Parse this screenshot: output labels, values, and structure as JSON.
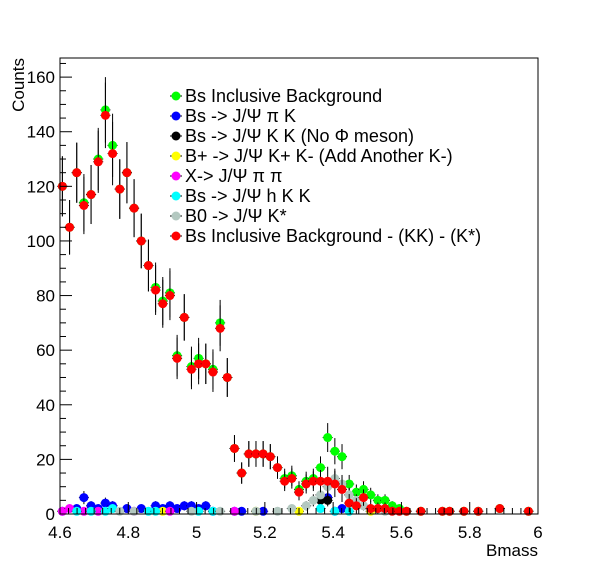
{
  "chart_data": {
    "type": "scatter",
    "xlabel": "Bmass",
    "ylabel": "Counts",
    "xlim": [
      4.6,
      6.0
    ],
    "ylim": [
      0,
      167
    ],
    "xticks": [
      "4.6",
      "4.8",
      "5",
      "5.2",
      "5.4",
      "5.6",
      "5.8",
      "6"
    ],
    "yticks": [
      "0",
      "20",
      "40",
      "60",
      "80",
      "100",
      "120",
      "140",
      "160"
    ],
    "grid": false,
    "legend_position": "top-right",
    "series": [
      {
        "name": "Bs Inclusive Background",
        "color": "#00ff00",
        "points": [
          [
            4.607,
            120,
            11
          ],
          [
            4.628,
            105,
            10
          ],
          [
            4.649,
            125,
            11
          ],
          [
            4.67,
            114,
            10.5
          ],
          [
            4.691,
            117,
            10.8
          ],
          [
            4.712,
            130,
            11.4
          ],
          [
            4.733,
            148,
            12
          ],
          [
            4.754,
            135,
            11.6
          ],
          [
            4.775,
            119,
            10.9
          ],
          [
            4.796,
            125,
            11.2
          ],
          [
            4.817,
            112,
            10.6
          ],
          [
            4.838,
            100,
            10
          ],
          [
            4.859,
            91,
            9.5
          ],
          [
            4.88,
            83,
            9.1
          ],
          [
            4.901,
            78,
            8.8
          ],
          [
            4.922,
            81,
            9
          ],
          [
            4.943,
            58,
            7.6
          ],
          [
            4.964,
            72,
            8.5
          ],
          [
            4.985,
            54,
            7.3
          ],
          [
            5.006,
            57,
            7.5
          ],
          [
            5.027,
            55,
            7.4
          ],
          [
            5.048,
            53,
            7.3
          ],
          [
            5.069,
            70,
            8.4
          ],
          [
            5.09,
            50,
            7.1
          ],
          [
            5.111,
            24,
            4.9
          ],
          [
            5.132,
            15,
            3.9
          ],
          [
            5.153,
            22,
            4.7
          ],
          [
            5.174,
            22,
            4.7
          ],
          [
            5.195,
            22,
            4.7
          ],
          [
            5.216,
            21,
            4.6
          ],
          [
            5.237,
            17,
            4.1
          ],
          [
            5.258,
            13,
            3.6
          ],
          [
            5.279,
            14,
            3.7
          ],
          [
            5.3,
            9,
            3
          ],
          [
            5.321,
            12,
            3.5
          ],
          [
            5.342,
            13,
            3.6
          ],
          [
            5.363,
            17,
            4.1
          ],
          [
            5.384,
            28,
            5.3
          ],
          [
            5.405,
            23,
            4.8
          ],
          [
            5.426,
            21,
            4.6
          ],
          [
            5.447,
            11,
            3.3
          ],
          [
            5.468,
            8,
            2.8
          ],
          [
            5.489,
            9,
            3
          ],
          [
            5.51,
            7,
            2.6
          ],
          [
            5.531,
            5,
            2.2
          ],
          [
            5.552,
            5,
            2.2
          ],
          [
            5.573,
            3,
            1.7
          ],
          [
            5.594,
            2,
            1.4
          ],
          [
            5.615,
            1,
            1
          ],
          [
            5.657,
            1,
            1
          ],
          [
            5.72,
            1,
            1
          ],
          [
            5.741,
            1,
            1
          ],
          [
            5.783,
            1,
            1
          ],
          [
            5.825,
            1,
            1
          ],
          [
            5.888,
            2,
            1.4
          ],
          [
            5.972,
            1,
            1
          ]
        ]
      },
      {
        "name": "Bs -> J/Ψ  π K",
        "color": "#0000ff",
        "points": [
          [
            4.607,
            1,
            1
          ],
          [
            4.649,
            2,
            1.4
          ],
          [
            4.67,
            6,
            2.4
          ],
          [
            4.691,
            3,
            1.7
          ],
          [
            4.712,
            2,
            1.4
          ],
          [
            4.733,
            4,
            2
          ],
          [
            4.754,
            3,
            1.7
          ],
          [
            4.796,
            2,
            1.4
          ],
          [
            4.838,
            2,
            1.4
          ],
          [
            4.88,
            3,
            1.7
          ],
          [
            4.901,
            2,
            1.4
          ],
          [
            4.922,
            3,
            1.7
          ],
          [
            4.943,
            2,
            1.4
          ],
          [
            4.964,
            3,
            1.7
          ],
          [
            4.985,
            3,
            1.7
          ],
          [
            5.006,
            2,
            1.4
          ],
          [
            5.027,
            3,
            1.7
          ],
          [
            5.048,
            1,
            1
          ],
          [
            5.111,
            1,
            1
          ],
          [
            5.132,
            1,
            1
          ],
          [
            5.195,
            1,
            1
          ],
          [
            5.384,
            6,
            2.4
          ],
          [
            5.405,
            1,
            1
          ],
          [
            5.426,
            2,
            1.4
          ]
        ]
      },
      {
        "name": "Bs -> J/Ψ  K K (No Φ meson)",
        "color": "#000000",
        "points": [
          [
            5.363,
            5,
            2.2
          ],
          [
            5.384,
            5,
            2.2
          ]
        ]
      },
      {
        "name": "B+ ->  J/Ψ  K+ K- (Add Another K-)",
        "color": "#ffff00",
        "points": [
          [
            4.901,
            1,
            1
          ],
          [
            5.174,
            1,
            1
          ],
          [
            5.3,
            1,
            1
          ],
          [
            5.51,
            1,
            1
          ]
        ]
      },
      {
        "name": "X-> J/Ψ π π",
        "color": "#ff00ff",
        "points": [
          [
            4.607,
            1,
            1
          ],
          [
            4.628,
            2,
            1.4
          ],
          [
            4.67,
            1,
            1
          ],
          [
            4.712,
            1,
            1
          ],
          [
            4.817,
            1,
            1
          ],
          [
            4.922,
            1,
            1
          ],
          [
            5.111,
            1,
            1
          ]
        ]
      },
      {
        "name": "Bs -> J/Ψ h K K",
        "color": "#00ffff",
        "points": [
          [
            4.649,
            1,
            1
          ],
          [
            4.691,
            1,
            1
          ],
          [
            4.733,
            1,
            1
          ],
          [
            4.754,
            2,
            1.4
          ],
          [
            4.859,
            1,
            1
          ],
          [
            4.88,
            1,
            1
          ],
          [
            5.006,
            1,
            1
          ],
          [
            5.048,
            1,
            1
          ],
          [
            5.363,
            2,
            1.4
          ],
          [
            5.405,
            1,
            1
          ],
          [
            5.447,
            1,
            1
          ]
        ]
      },
      {
        "name": "B0 -> J/Ψ K*",
        "color": "#b3c8c0",
        "points": [
          [
            4.775,
            1,
            1
          ],
          [
            4.817,
            1,
            1
          ],
          [
            4.985,
            1,
            1
          ],
          [
            5.069,
            1,
            1
          ],
          [
            5.174,
            1,
            1
          ],
          [
            5.237,
            1,
            1
          ],
          [
            5.279,
            2,
            1.4
          ],
          [
            5.321,
            3,
            1.7
          ],
          [
            5.342,
            5,
            2.2
          ],
          [
            5.363,
            7,
            2.6
          ],
          [
            5.384,
            10,
            3.2
          ],
          [
            5.405,
            13,
            3.6
          ],
          [
            5.426,
            11,
            3.3
          ],
          [
            5.447,
            7,
            2.6
          ],
          [
            5.468,
            5,
            2.2
          ],
          [
            5.489,
            3,
            1.7
          ],
          [
            5.51,
            2,
            1.4
          ],
          [
            5.531,
            2,
            1.4
          ],
          [
            5.552,
            1,
            1
          ]
        ]
      },
      {
        "name": "Bs Inclusive Background - (KK) - (K*)",
        "color": "#ff0000",
        "points": [
          [
            4.607,
            120,
            11
          ],
          [
            4.628,
            105,
            10
          ],
          [
            4.649,
            125,
            11
          ],
          [
            4.67,
            113,
            10.5
          ],
          [
            4.691,
            117,
            10.8
          ],
          [
            4.712,
            129,
            11.4
          ],
          [
            4.733,
            146,
            12
          ],
          [
            4.754,
            132,
            11.6
          ],
          [
            4.775,
            119,
            10.9
          ],
          [
            4.796,
            125,
            11.2
          ],
          [
            4.817,
            112,
            10.6
          ],
          [
            4.838,
            100,
            10
          ],
          [
            4.859,
            91,
            9.5
          ],
          [
            4.88,
            82,
            9.1
          ],
          [
            4.901,
            77,
            8.8
          ],
          [
            4.922,
            80,
            9
          ],
          [
            4.943,
            57,
            7.6
          ],
          [
            4.964,
            72,
            8.5
          ],
          [
            4.985,
            53,
            7.3
          ],
          [
            5.006,
            55,
            7.5
          ],
          [
            5.027,
            55,
            7.4
          ],
          [
            5.048,
            52,
            7.3
          ],
          [
            5.069,
            68,
            8.4
          ],
          [
            5.09,
            50,
            7.1
          ],
          [
            5.111,
            24,
            4.9
          ],
          [
            5.132,
            15,
            3.9
          ],
          [
            5.153,
            22,
            4.7
          ],
          [
            5.174,
            22,
            4.7
          ],
          [
            5.195,
            22,
            4.7
          ],
          [
            5.216,
            21,
            4.6
          ],
          [
            5.237,
            17,
            4.1
          ],
          [
            5.258,
            12,
            3.6
          ],
          [
            5.279,
            13,
            3.7
          ],
          [
            5.3,
            8,
            3
          ],
          [
            5.321,
            11,
            3.5
          ],
          [
            5.342,
            12,
            3.6
          ],
          [
            5.363,
            12,
            4.1
          ],
          [
            5.384,
            12,
            5.3
          ],
          [
            5.405,
            11,
            4.8
          ],
          [
            5.426,
            9,
            4.6
          ],
          [
            5.447,
            4,
            3.3
          ],
          [
            5.468,
            3,
            2.8
          ],
          [
            5.489,
            6,
            3
          ],
          [
            5.51,
            2,
            2.6
          ],
          [
            5.531,
            2,
            2.2
          ],
          [
            5.552,
            2,
            2.2
          ],
          [
            5.573,
            1,
            1.7
          ],
          [
            5.594,
            1,
            1.4
          ],
          [
            5.615,
            1,
            1
          ],
          [
            5.657,
            1,
            1
          ],
          [
            5.72,
            1,
            1
          ],
          [
            5.741,
            1,
            1
          ],
          [
            5.783,
            1,
            1
          ],
          [
            5.825,
            1,
            1
          ],
          [
            5.888,
            2,
            1.4
          ],
          [
            5.972,
            1,
            1
          ]
        ]
      }
    ]
  }
}
